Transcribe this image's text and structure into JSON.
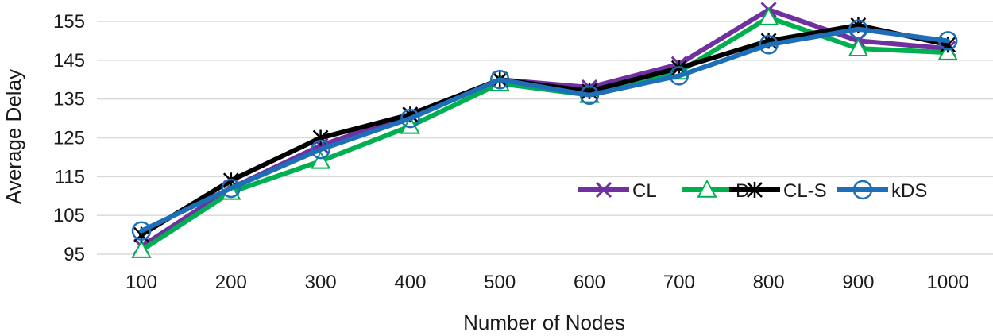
{
  "chart_data": {
    "type": "line",
    "title": "",
    "xlabel": "Number of Nodes",
    "ylabel": "Average Delay",
    "categories": [
      "100",
      "200",
      "300",
      "400",
      "500",
      "600",
      "700",
      "800",
      "900",
      "1000"
    ],
    "ylim": [
      91,
      158
    ],
    "yticks": [
      95,
      105,
      115,
      125,
      135,
      145,
      155
    ],
    "grid": true,
    "legend_position": "center-right",
    "series": [
      {
        "name": "CL",
        "color": "#7030a0",
        "marker": "x",
        "values": [
          97,
          112,
          123,
          131,
          140,
          138,
          144,
          158,
          150,
          148
        ]
      },
      {
        "name": "D",
        "color": "#00b050",
        "marker": "triangle",
        "values": [
          96,
          111,
          119,
          128,
          139,
          136,
          142,
          156,
          148,
          147
        ]
      },
      {
        "name": "CL-S",
        "color": "#000000",
        "marker": "star",
        "values": [
          100,
          114,
          125,
          131,
          140,
          137,
          143,
          150,
          154,
          149
        ]
      },
      {
        "name": "kDS",
        "color": "#1f6fb8",
        "marker": "circle",
        "values": [
          101,
          112,
          122,
          130,
          140,
          136,
          141,
          149,
          153,
          150
        ]
      }
    ]
  }
}
